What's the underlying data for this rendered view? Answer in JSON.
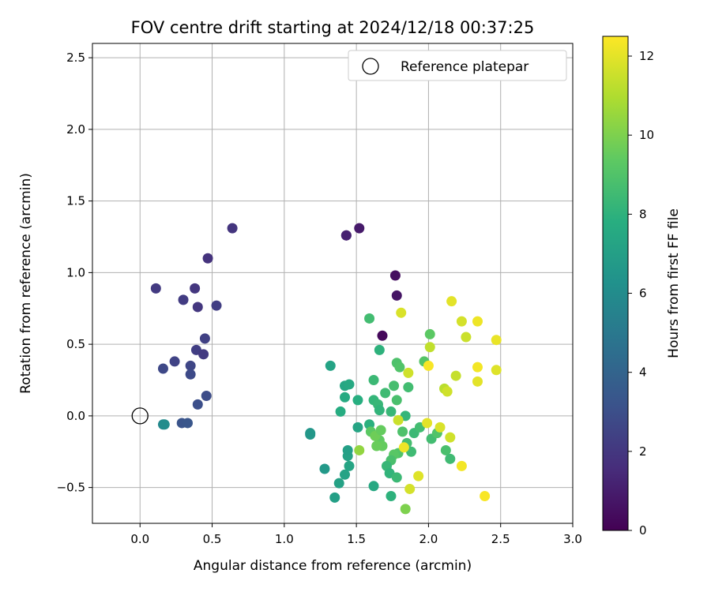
{
  "chart_data": {
    "type": "scatter",
    "title": "FOV centre drift starting at 2024/12/18 00:37:25",
    "xlabel": "Angular distance from reference (arcmin)",
    "ylabel": "Rotation from reference (arcmin)",
    "xlim": [
      -0.33,
      3.0
    ],
    "ylim": [
      -0.75,
      2.6
    ],
    "xticks": [
      0.0,
      0.5,
      1.0,
      1.5,
      2.0,
      2.5,
      3.0
    ],
    "xtick_labels": [
      "0.0",
      "0.5",
      "1.0",
      "1.5",
      "2.0",
      "2.5",
      "3.0"
    ],
    "yticks": [
      -0.5,
      0.0,
      0.5,
      1.0,
      1.5,
      2.0,
      2.5
    ],
    "ytick_labels": [
      "−0.5",
      "0.0",
      "0.5",
      "1.0",
      "1.5",
      "2.0",
      "2.5"
    ],
    "grid": true,
    "legend": {
      "position": "top-right",
      "entries": [
        "Reference platepar"
      ]
    },
    "reference_point": {
      "x": 0.0,
      "y": 0.0
    },
    "colorbar": {
      "label": "Hours from first FF file",
      "colormap": "viridis",
      "range": [
        0,
        12.5
      ],
      "ticks": [
        0,
        2,
        4,
        6,
        8,
        10,
        12
      ],
      "tick_labels": [
        "0",
        "2",
        "4",
        "6",
        "8",
        "10",
        "12"
      ]
    },
    "points": [
      {
        "x": 1.68,
        "y": 0.56,
        "hours": 0.3
      },
      {
        "x": 1.77,
        "y": 0.98,
        "hours": 0.5
      },
      {
        "x": 1.78,
        "y": 0.84,
        "hours": 0.7
      },
      {
        "x": 1.52,
        "y": 1.31,
        "hours": 0.9
      },
      {
        "x": 1.43,
        "y": 1.26,
        "hours": 1.1
      },
      {
        "x": 1.43,
        "y": 1.26,
        "hours": 1.15
      },
      {
        "x": 0.64,
        "y": 1.31,
        "hours": 1.9
      },
      {
        "x": 0.47,
        "y": 1.1,
        "hours": 1.8
      },
      {
        "x": 0.11,
        "y": 0.89,
        "hours": 2.1
      },
      {
        "x": 0.38,
        "y": 0.89,
        "hours": 2.0
      },
      {
        "x": 0.3,
        "y": 0.81,
        "hours": 2.2
      },
      {
        "x": 0.4,
        "y": 0.76,
        "hours": 2.0
      },
      {
        "x": 0.53,
        "y": 0.77,
        "hours": 2.3
      },
      {
        "x": 0.45,
        "y": 0.54,
        "hours": 2.4
      },
      {
        "x": 0.39,
        "y": 0.46,
        "hours": 2.3
      },
      {
        "x": 0.44,
        "y": 0.43,
        "hours": 2.1
      },
      {
        "x": 0.24,
        "y": 0.38,
        "hours": 2.5
      },
      {
        "x": 0.35,
        "y": 0.35,
        "hours": 2.6
      },
      {
        "x": 0.16,
        "y": 0.33,
        "hours": 2.7
      },
      {
        "x": 0.35,
        "y": 0.29,
        "hours": 2.8
      },
      {
        "x": 0.46,
        "y": 0.14,
        "hours": 2.9
      },
      {
        "x": 0.4,
        "y": 0.08,
        "hours": 3.0
      },
      {
        "x": 0.29,
        "y": -0.05,
        "hours": 3.2
      },
      {
        "x": 0.33,
        "y": -0.05,
        "hours": 3.3
      },
      {
        "x": 0.16,
        "y": -0.06,
        "hours": 5.8
      },
      {
        "x": 0.17,
        "y": -0.06,
        "hours": 6.0
      },
      {
        "x": 1.18,
        "y": -0.12,
        "hours": 6.5
      },
      {
        "x": 1.18,
        "y": -0.13,
        "hours": 6.6
      },
      {
        "x": 1.28,
        "y": -0.37,
        "hours": 6.7
      },
      {
        "x": 1.35,
        "y": -0.57,
        "hours": 7.0
      },
      {
        "x": 1.38,
        "y": -0.47,
        "hours": 7.1
      },
      {
        "x": 1.42,
        "y": -0.41,
        "hours": 7.2
      },
      {
        "x": 1.45,
        "y": -0.35,
        "hours": 7.3
      },
      {
        "x": 1.44,
        "y": -0.28,
        "hours": 7.1
      },
      {
        "x": 1.44,
        "y": -0.24,
        "hours": 7.0
      },
      {
        "x": 1.32,
        "y": 0.35,
        "hours": 7.2
      },
      {
        "x": 1.42,
        "y": 0.21,
        "hours": 7.4
      },
      {
        "x": 1.45,
        "y": 0.22,
        "hours": 7.5
      },
      {
        "x": 1.42,
        "y": 0.13,
        "hours": 7.6
      },
      {
        "x": 1.39,
        "y": 0.03,
        "hours": 7.7
      },
      {
        "x": 1.51,
        "y": 0.11,
        "hours": 7.8
      },
      {
        "x": 1.51,
        "y": -0.08,
        "hours": 7.3
      },
      {
        "x": 1.59,
        "y": -0.06,
        "hours": 7.9
      },
      {
        "x": 1.62,
        "y": -0.49,
        "hours": 7.5
      },
      {
        "x": 1.59,
        "y": 0.68,
        "hours": 8.6
      },
      {
        "x": 1.66,
        "y": 0.46,
        "hours": 8.0
      },
      {
        "x": 1.62,
        "y": 0.25,
        "hours": 8.4
      },
      {
        "x": 1.62,
        "y": 0.11,
        "hours": 8.2
      },
      {
        "x": 1.65,
        "y": 0.08,
        "hours": 8.3
      },
      {
        "x": 1.66,
        "y": 0.04,
        "hours": 8.1
      },
      {
        "x": 1.7,
        "y": 0.16,
        "hours": 8.5
      },
      {
        "x": 1.74,
        "y": 0.03,
        "hours": 8.3
      },
      {
        "x": 1.76,
        "y": 0.21,
        "hours": 8.7
      },
      {
        "x": 1.78,
        "y": 0.11,
        "hours": 8.8
      },
      {
        "x": 1.78,
        "y": 0.37,
        "hours": 8.9
      },
      {
        "x": 1.8,
        "y": 0.34,
        "hours": 9.0
      },
      {
        "x": 1.86,
        "y": 0.2,
        "hours": 8.6
      },
      {
        "x": 1.84,
        "y": 0.0,
        "hours": 8.2
      },
      {
        "x": 1.97,
        "y": 0.38,
        "hours": 9.1
      },
      {
        "x": 2.01,
        "y": 0.57,
        "hours": 9.3
      },
      {
        "x": 1.9,
        "y": -0.12,
        "hours": 8.4
      },
      {
        "x": 1.94,
        "y": -0.08,
        "hours": 8.6
      },
      {
        "x": 1.88,
        "y": -0.25,
        "hours": 8.5
      },
      {
        "x": 1.85,
        "y": -0.19,
        "hours": 8.7
      },
      {
        "x": 1.82,
        "y": -0.11,
        "hours": 8.9
      },
      {
        "x": 1.79,
        "y": -0.26,
        "hours": 9.0
      },
      {
        "x": 1.76,
        "y": -0.27,
        "hours": 9.2
      },
      {
        "x": 1.74,
        "y": -0.31,
        "hours": 8.8
      },
      {
        "x": 1.71,
        "y": -0.35,
        "hours": 8.3
      },
      {
        "x": 1.73,
        "y": -0.4,
        "hours": 8.1
      },
      {
        "x": 1.78,
        "y": -0.43,
        "hours": 8.4
      },
      {
        "x": 1.74,
        "y": -0.56,
        "hours": 8.0
      },
      {
        "x": 1.66,
        "y": -0.17,
        "hours": 9.4
      },
      {
        "x": 1.68,
        "y": -0.21,
        "hours": 9.5
      },
      {
        "x": 1.64,
        "y": -0.21,
        "hours": 9.6
      },
      {
        "x": 1.6,
        "y": -0.11,
        "hours": 9.3
      },
      {
        "x": 1.63,
        "y": -0.14,
        "hours": 9.7
      },
      {
        "x": 1.67,
        "y": -0.1,
        "hours": 9.5
      },
      {
        "x": 1.52,
        "y": -0.24,
        "hours": 10.4
      },
      {
        "x": 1.84,
        "y": -0.65,
        "hours": 10.0
      },
      {
        "x": 2.02,
        "y": -0.16,
        "hours": 8.6
      },
      {
        "x": 2.06,
        "y": -0.12,
        "hours": 9.0
      },
      {
        "x": 2.12,
        "y": -0.24,
        "hours": 8.8
      },
      {
        "x": 2.15,
        "y": -0.3,
        "hours": 8.5
      },
      {
        "x": 2.08,
        "y": -0.08,
        "hours": 11.8
      },
      {
        "x": 2.15,
        "y": -0.15,
        "hours": 11.6
      },
      {
        "x": 1.99,
        "y": -0.05,
        "hours": 12.0
      },
      {
        "x": 1.79,
        "y": -0.03,
        "hours": 11.5
      },
      {
        "x": 1.83,
        "y": -0.22,
        "hours": 12.2
      },
      {
        "x": 1.93,
        "y": -0.42,
        "hours": 11.9
      },
      {
        "x": 1.87,
        "y": -0.51,
        "hours": 11.7
      },
      {
        "x": 2.23,
        "y": -0.35,
        "hours": 12.3
      },
      {
        "x": 2.39,
        "y": -0.56,
        "hours": 12.4
      },
      {
        "x": 1.81,
        "y": 0.72,
        "hours": 11.8
      },
      {
        "x": 2.16,
        "y": 0.8,
        "hours": 12.0
      },
      {
        "x": 2.23,
        "y": 0.66,
        "hours": 11.7
      },
      {
        "x": 2.34,
        "y": 0.66,
        "hours": 12.2
      },
      {
        "x": 2.26,
        "y": 0.55,
        "hours": 11.5
      },
      {
        "x": 2.47,
        "y": 0.53,
        "hours": 12.1
      },
      {
        "x": 2.01,
        "y": 0.48,
        "hours": 11.3
      },
      {
        "x": 2.0,
        "y": 0.35,
        "hours": 12.4
      },
      {
        "x": 1.86,
        "y": 0.3,
        "hours": 11.6
      },
      {
        "x": 2.34,
        "y": 0.34,
        "hours": 12.3
      },
      {
        "x": 2.47,
        "y": 0.32,
        "hours": 11.9
      },
      {
        "x": 2.19,
        "y": 0.28,
        "hours": 11.4
      },
      {
        "x": 2.34,
        "y": 0.24,
        "hours": 12.0
      },
      {
        "x": 2.11,
        "y": 0.19,
        "hours": 11.2
      },
      {
        "x": 2.13,
        "y": 0.17,
        "hours": 11.6
      }
    ]
  }
}
